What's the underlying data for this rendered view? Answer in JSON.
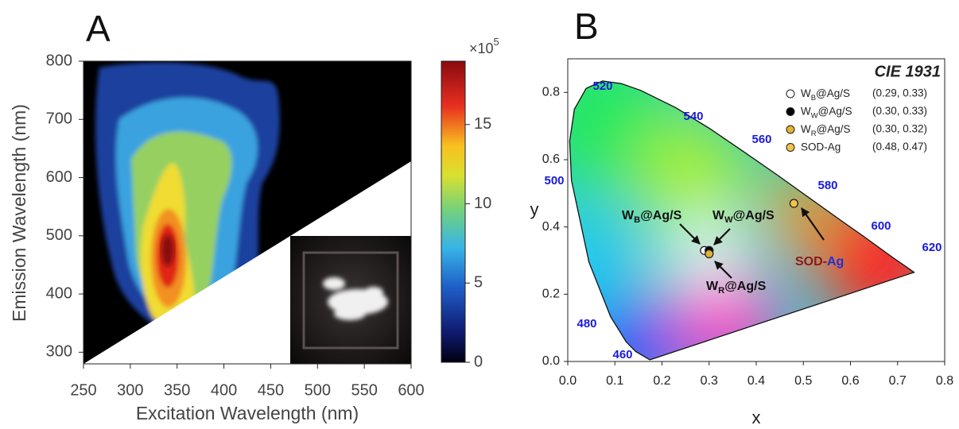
{
  "chart_data": [
    {
      "type": "heatmap",
      "panel_label": "A",
      "xlabel": "Excitation Wavelength (nm)",
      "ylabel": "Emission Wavelength (nm)",
      "xlim": [
        250,
        600
      ],
      "ylim": [
        280,
        800
      ],
      "xticks": [
        250,
        300,
        350,
        400,
        450,
        500,
        550,
        600
      ],
      "yticks": [
        300,
        400,
        500,
        600,
        700,
        800
      ],
      "peak": {
        "x": 340,
        "y": 475,
        "value": 19
      },
      "colorbar": {
        "lim": [
          0,
          19
        ],
        "ticks": [
          0,
          5,
          10,
          15
        ],
        "multiplier": {
          "base": "×10",
          "exp": "5"
        }
      }
    },
    {
      "type": "scatter",
      "panel_label": "B",
      "title": "CIE 1931",
      "xlabel": "x",
      "ylabel": "y",
      "xlim": [
        0,
        0.8
      ],
      "ylim": [
        0,
        0.9
      ],
      "xticks": [
        {
          "value": 0,
          "label": "0.0"
        },
        0.1,
        0.2,
        0.3,
        0.4,
        0.5,
        0.6,
        0.7,
        0.8
      ],
      "yticks": [
        {
          "value": 0,
          "label": "0.0"
        },
        0.2,
        0.4,
        0.6,
        0.8
      ],
      "wavelength_labels": [
        460,
        480,
        500,
        520,
        540,
        560,
        580,
        600,
        620
      ],
      "series": [
        {
          "name": {
            "main": "W",
            "sub": "B",
            "rest": "@Ag/S"
          },
          "color": "#ffffff",
          "x": [
            0.29
          ],
          "y": [
            0.33
          ],
          "value_labels": [
            "(0.29, 0.33)"
          ]
        },
        {
          "name": {
            "main": "W",
            "sub": "W",
            "rest": "@Ag/S"
          },
          "color": "#000000",
          "x": [
            0.3
          ],
          "y": [
            0.33
          ],
          "value_labels": [
            "(0.30, 0.33)"
          ]
        },
        {
          "name": {
            "main": "W",
            "sub": "R",
            "rest": "@Ag/S"
          },
          "color": "#e2b232",
          "x": [
            0.3
          ],
          "y": [
            0.32
          ],
          "value_labels": [
            "(0.30, 0.32)"
          ]
        },
        {
          "name": {
            "main": "SOD-Ag"
          },
          "color": "#f3c24a",
          "x": [
            0.48
          ],
          "y": [
            0.47
          ],
          "value_labels": [
            "(0.48, 0.47)"
          ]
        }
      ],
      "annotations": [
        {
          "main": "W",
          "sub": "B",
          "rest": "@Ag/S"
        },
        {
          "main": "W",
          "sub": "W",
          "rest": "@Ag/S"
        },
        {
          "main": "W",
          "sub": "R",
          "rest": "@Ag/S"
        },
        {
          "main": "SOD-",
          "rest": "Ag"
        }
      ]
    }
  ]
}
